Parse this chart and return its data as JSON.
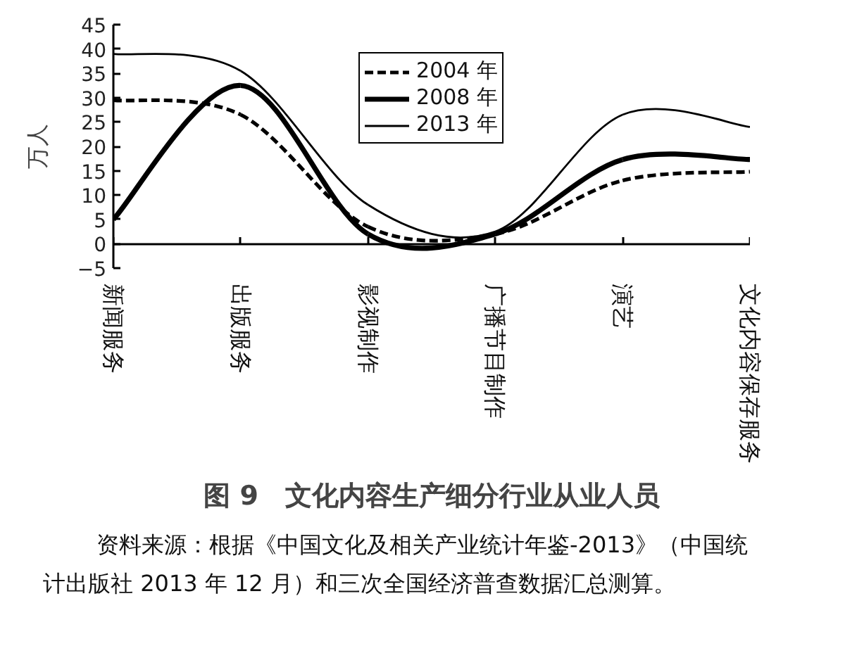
{
  "chart_data": {
    "type": "line",
    "title": "图 9　文化内容生产细分行业从业人员",
    "ylabel": "万人",
    "annotations": [
      "资料来源：根据《中国文化及相关产业统计年鉴-2013》（中国统计出版社 2013 年 12 月）和三次全国经济普查数据汇总测算。"
    ],
    "categories": [
      "新闻服务",
      "出版服务",
      "影视制作",
      "广播节目制作",
      "演艺",
      "文化内容保存服务"
    ],
    "series": [
      {
        "name": "2004 年",
        "color": "#000000",
        "line_style": "dashed",
        "values": [
          29.5,
          26.5,
          3.5,
          2,
          13,
          14.8
        ]
      },
      {
        "name": "2008 年",
        "color": "#000000",
        "line_style": "solid",
        "values": [
          5,
          32.5,
          2,
          2,
          17.3,
          17.3
        ]
      },
      {
        "name": "2013 年",
        "color": "#000000",
        "line_style": "solid",
        "values": [
          39,
          35.5,
          8,
          2.5,
          26.5,
          24
        ]
      }
    ],
    "ylim": [
      -5,
      45
    ],
    "yticks": [
      -5,
      0,
      5,
      10,
      15,
      20,
      25,
      30,
      35,
      40,
      45
    ],
    "grid": false,
    "legend": "top",
    "marker": "none"
  }
}
